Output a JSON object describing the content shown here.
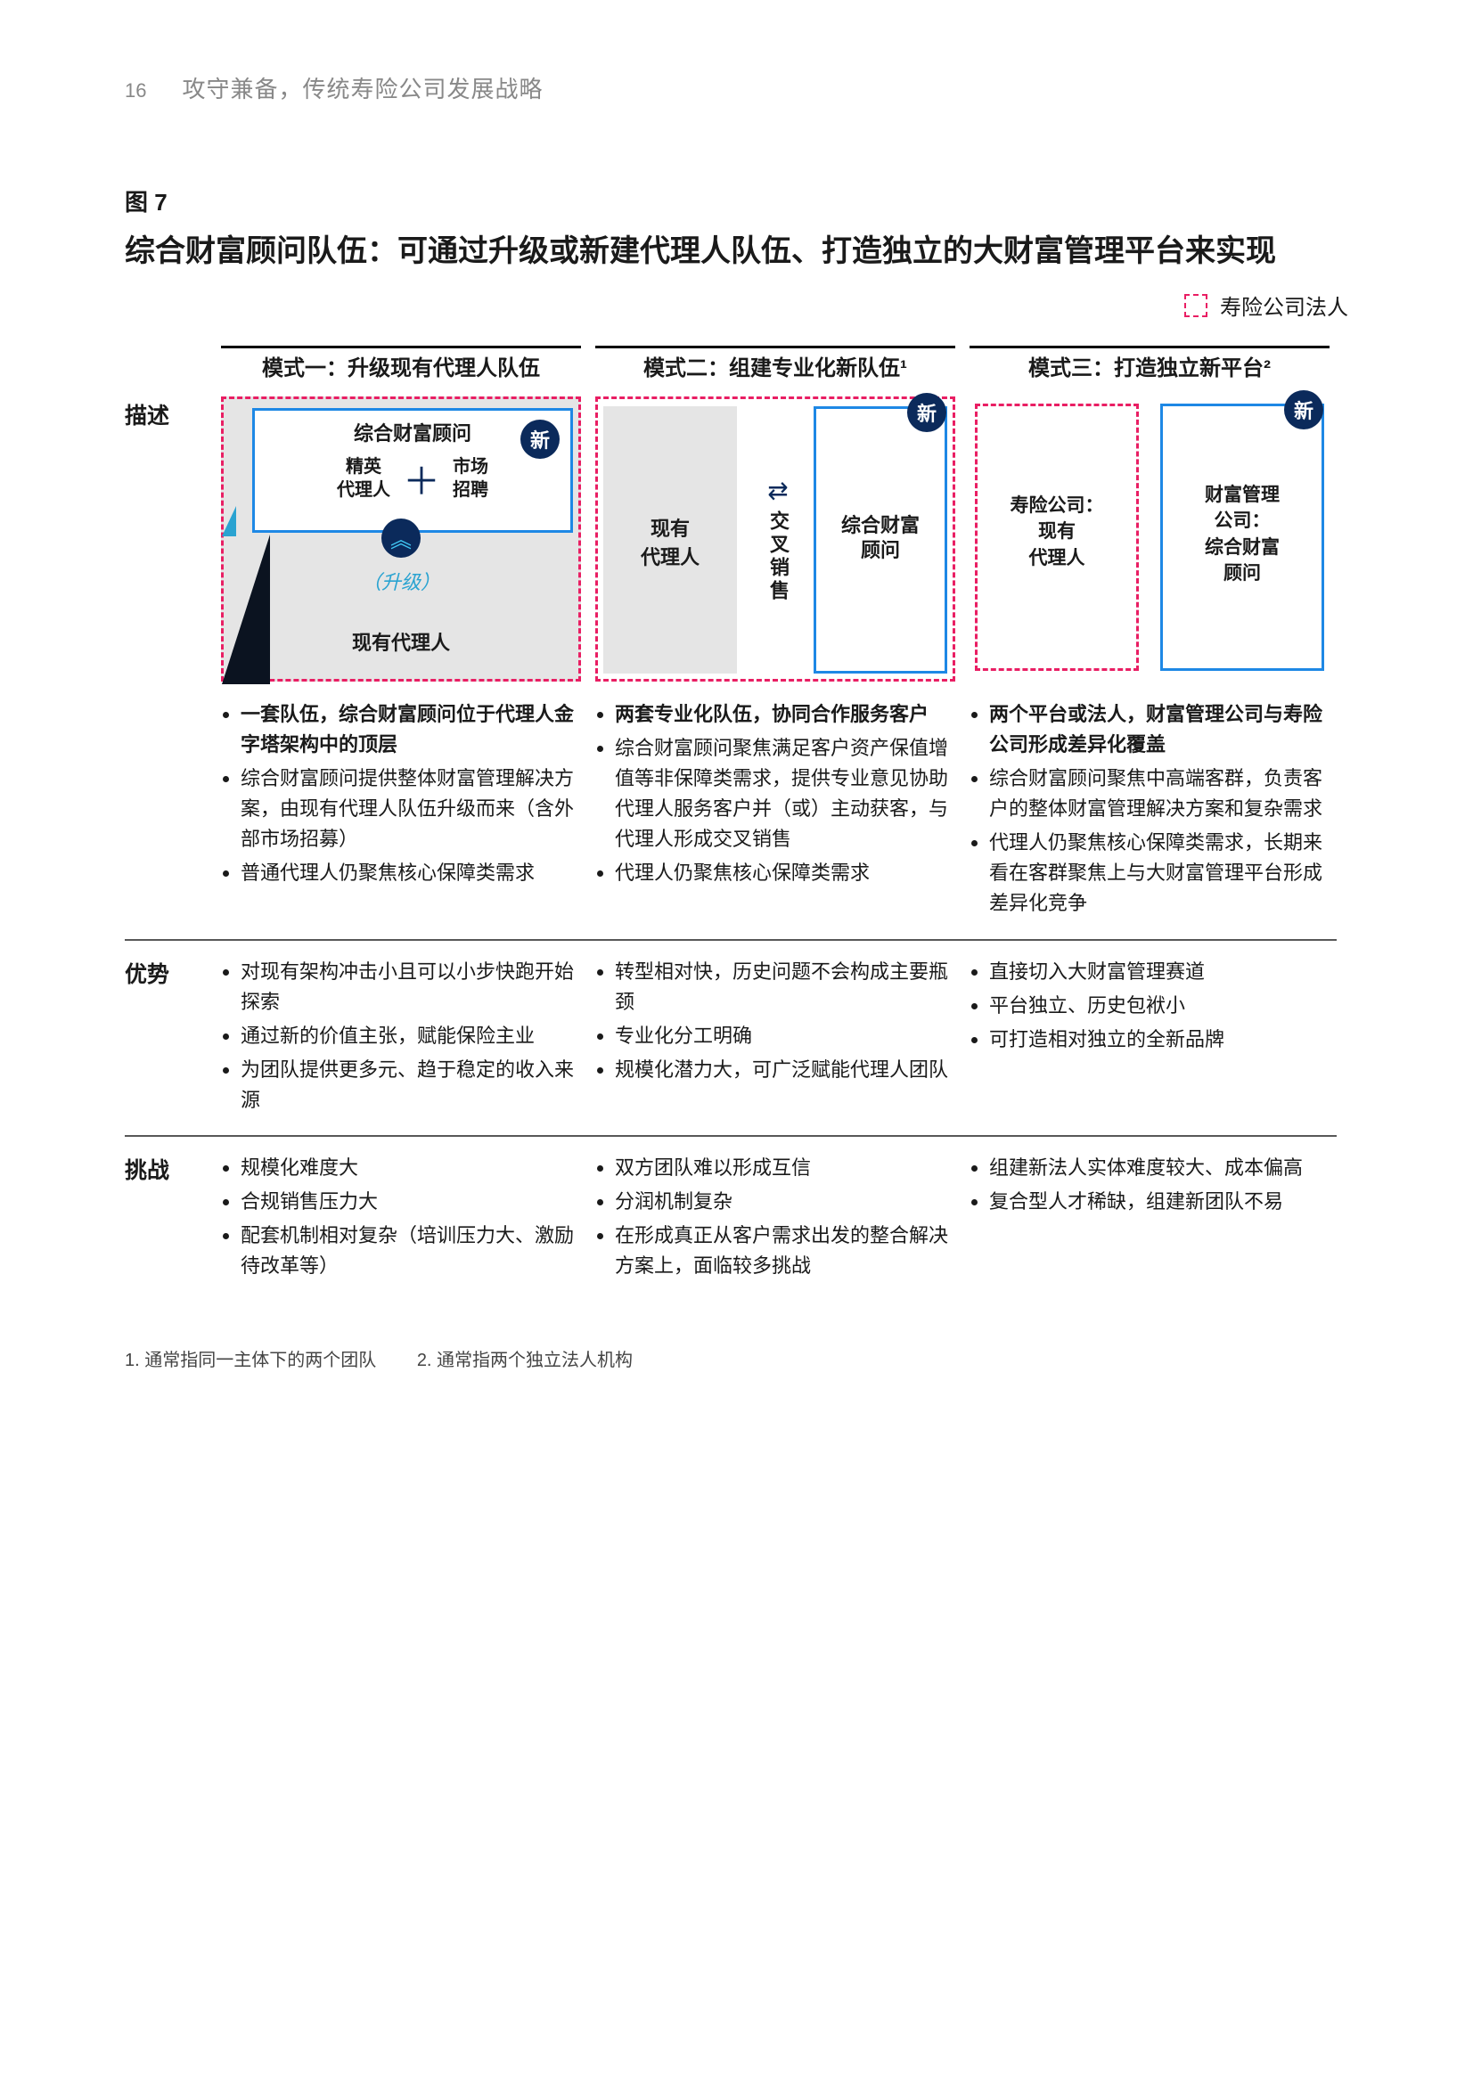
{
  "header": {
    "page_no": "16",
    "title": "攻守兼备，传统寿险公司发展战略"
  },
  "figure": {
    "label": "图 7",
    "title": "综合财富顾问队伍：可通过升级或新建代理人队伍、打造独立的大财富管理平台来实现",
    "legend": "寿险公司法人",
    "colors": {
      "dashed_pink": "#e91e63",
      "solid_blue": "#1e88e5",
      "badge_navy": "#0b2a5b",
      "grey_fill": "#e5e5e5",
      "arrow_cyan": "#41c8f5",
      "upgrade_teal": "#2aa3d1",
      "dark_triangle": "#0b1320"
    }
  },
  "rows": {
    "describe": "描述",
    "advantage": "优势",
    "challenge": "挑战"
  },
  "models": {
    "m1": {
      "header": "模式一：升级现有代理人队伍",
      "top_title": "综合财富顾问",
      "top_left": "精英\n代理人",
      "top_right": "市场\n招聘",
      "upgrade": "（升级）",
      "bottom": "现有代理人",
      "new": "新",
      "arrow": "︽",
      "desc": {
        "b0": "一套队伍，综合财富顾问位于代理人金字塔架构中的顶层",
        "b1": "综合财富顾问提供整体财富管理解决方案，由现有代理人队伍升级而来（含外部市场招募）",
        "b2": "普通代理人仍聚焦核心保障类需求"
      },
      "adv": {
        "b0": "对现有架构冲击小且可以小步快跑开始探索",
        "b1": "通过新的价值主张，赋能保险主业",
        "b2": "为团队提供更多元、趋于稳定的收入来源"
      },
      "chal": {
        "b0": "规模化难度大",
        "b1": "合规销售压力大",
        "b2": "配套机制相对复杂（培训压力大、激励待改革等）"
      }
    },
    "m2": {
      "header": "模式二：组建专业化新队伍¹",
      "left": "现有\n代理人",
      "mid_icon": "⇄",
      "mid": "交叉销售",
      "right": "综合财富\n顾问",
      "new": "新",
      "desc": {
        "b0": "两套专业化队伍，协同合作服务客户",
        "b1": "综合财富顾问聚焦满足客户资产保值增值等非保障类需求，提供专业意见协助代理人服务客户并（或）主动获客，与代理人形成交叉销售",
        "b2": "代理人仍聚焦核心保障类需求"
      },
      "adv": {
        "b0": "转型相对快，历史问题不会构成主要瓶颈",
        "b1": "专业化分工明确",
        "b2": "规模化潜力大，可广泛赋能代理人团队"
      },
      "chal": {
        "b0": "双方团队难以形成互信",
        "b1": "分润机制复杂",
        "b2": "在形成真正从客户需求出发的整合解决方案上，面临较多挑战"
      }
    },
    "m3": {
      "header": "模式三：打造独立新平台²",
      "left_t": "寿险公司：",
      "left_b": "现有\n代理人",
      "right_t": "财富管理\n公司：",
      "right_b": "综合财富\n顾问",
      "new": "新",
      "desc": {
        "b0": "两个平台或法人，财富管理公司与寿险公司形成差异化覆盖",
        "b1": "综合财富顾问聚焦中高端客群，负责客户的整体财富管理解决方案和复杂需求",
        "b2": "代理人仍聚焦核心保障类需求，长期来看在客群聚焦上与大财富管理平台形成差异化竞争"
      },
      "adv": {
        "b0": "直接切入大财富管理赛道",
        "b1": "平台独立、历史包袱小",
        "b2": "可打造相对独立的全新品牌"
      },
      "chal": {
        "b0": "组建新法人实体难度较大、成本偏高",
        "b1": "复合型人才稀缺，组建新团队不易"
      }
    }
  },
  "footnotes": {
    "f1": "1. 通常指同一主体下的两个团队",
    "f2": "2. 通常指两个独立法人机构"
  }
}
